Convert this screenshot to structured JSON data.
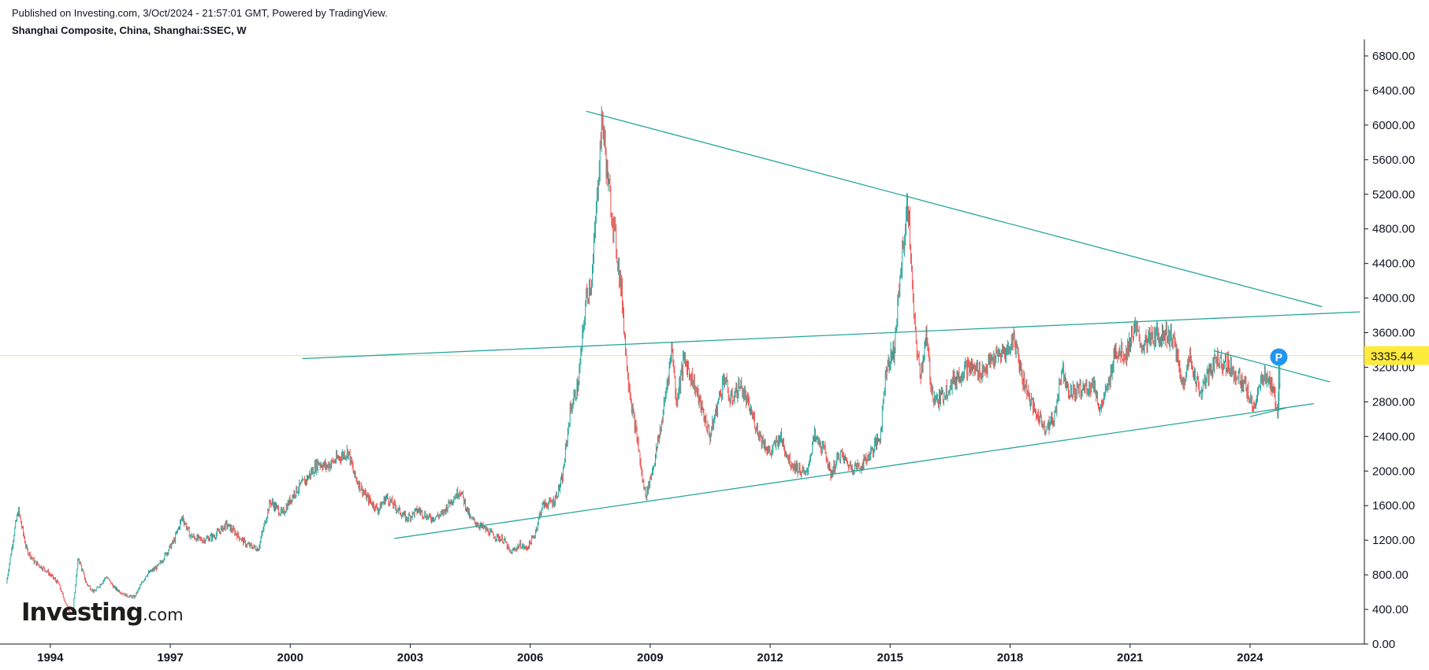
{
  "header": {
    "published": "Published on Investing.com, 3/Oct/2024 - 21:57:01 GMT, Powered by TradingView.",
    "symbol": "Shanghai Composite, China, Shanghai:SSEC, W"
  },
  "logo": {
    "main": "Investing",
    "suffix": ".com"
  },
  "colors": {
    "up": "#26a69a",
    "down": "#ef5350",
    "trendline": "#26a69a",
    "price_line": "#ffeb3b",
    "price_label_bg": "#ffeb3b",
    "marker_bg": "#2196f3",
    "axis": "#131722"
  },
  "marker": {
    "label": "P",
    "date": 2024.72,
    "price": 3336
  },
  "chart_data": {
    "type": "candlestick-line",
    "title": "Shanghai Composite, China, Shanghai:SSEC, W",
    "interval": "W",
    "xlim": [
      1992.9,
      2026.8
    ],
    "ylim": [
      0,
      6900
    ],
    "y_tick_values": [
      0,
      400,
      800,
      1200,
      1600,
      2000,
      2400,
      2800,
      3200,
      3600,
      4000,
      4400,
      4800,
      5200,
      5600,
      6000,
      6400,
      6800
    ],
    "y_tick_labels": [
      "0.00",
      "400.00",
      "800.00",
      "1200.00",
      "1600.00",
      "2000.00",
      "2400.00",
      "2800.00",
      "3200.00",
      "3600.00",
      "4000.00",
      "4400.00",
      "4800.00",
      "5200.00",
      "5600.00",
      "6000.00",
      "6400.00",
      "6800.00"
    ],
    "x_tick_values": [
      1994,
      1997,
      2000,
      2003,
      2006,
      2009,
      2012,
      2015,
      2018,
      2021,
      2024
    ],
    "x_tick_labels": [
      "1994",
      "1997",
      "2000",
      "2003",
      "2006",
      "2009",
      "2012",
      "2015",
      "2018",
      "2021",
      "2024"
    ],
    "last_price": 3335.44,
    "last_price_label": "3335.44",
    "price_path": [
      [
        1992.9,
        700
      ],
      [
        1993.1,
        1300
      ],
      [
        1993.2,
        1550
      ],
      [
        1993.4,
        1100
      ],
      [
        1993.6,
        950
      ],
      [
        1993.9,
        850
      ],
      [
        1994.2,
        700
      ],
      [
        1994.4,
        450
      ],
      [
        1994.55,
        330
      ],
      [
        1994.7,
        1000
      ],
      [
        1994.9,
        700
      ],
      [
        1995.1,
        600
      ],
      [
        1995.4,
        780
      ],
      [
        1995.6,
        650
      ],
      [
        1995.9,
        560
      ],
      [
        1996.1,
        540
      ],
      [
        1996.4,
        800
      ],
      [
        1996.7,
        900
      ],
      [
        1996.9,
        1050
      ],
      [
        1997.1,
        1200
      ],
      [
        1997.3,
        1470
      ],
      [
        1997.5,
        1250
      ],
      [
        1997.8,
        1200
      ],
      [
        1998.1,
        1250
      ],
      [
        1998.4,
        1380
      ],
      [
        1998.6,
        1300
      ],
      [
        1998.9,
        1150
      ],
      [
        1999.2,
        1100
      ],
      [
        1999.5,
        1650
      ],
      [
        1999.8,
        1500
      ],
      [
        2000.1,
        1750
      ],
      [
        2000.4,
        1900
      ],
      [
        2000.7,
        2100
      ],
      [
        2000.9,
        2050
      ],
      [
        2001.2,
        2150
      ],
      [
        2001.45,
        2230
      ],
      [
        2001.6,
        1950
      ],
      [
        2001.9,
        1700
      ],
      [
        2002.2,
        1550
      ],
      [
        2002.4,
        1700
      ],
      [
        2002.6,
        1600
      ],
      [
        2002.9,
        1450
      ],
      [
        2003.2,
        1550
      ],
      [
        2003.5,
        1450
      ],
      [
        2003.8,
        1500
      ],
      [
        2004.0,
        1650
      ],
      [
        2004.25,
        1780
      ],
      [
        2004.5,
        1450
      ],
      [
        2004.8,
        1350
      ],
      [
        2005.1,
        1250
      ],
      [
        2005.35,
        1200
      ],
      [
        2005.5,
        1050
      ],
      [
        2005.75,
        1150
      ],
      [
        2005.9,
        1100
      ],
      [
        2006.1,
        1250
      ],
      [
        2006.3,
        1600
      ],
      [
        2006.6,
        1650
      ],
      [
        2006.8,
        1900
      ],
      [
        2007.0,
        2700
      ],
      [
        2007.2,
        3000
      ],
      [
        2007.4,
        4000
      ],
      [
        2007.55,
        4250
      ],
      [
        2007.7,
        5400
      ],
      [
        2007.8,
        6100
      ],
      [
        2007.95,
        5300
      ],
      [
        2008.1,
        4800
      ],
      [
        2008.3,
        4000
      ],
      [
        2008.4,
        3300
      ],
      [
        2008.55,
        2700
      ],
      [
        2008.7,
        2300
      ],
      [
        2008.8,
        1900
      ],
      [
        2008.9,
        1720
      ],
      [
        2009.1,
        2100
      ],
      [
        2009.3,
        2600
      ],
      [
        2009.55,
        3450
      ],
      [
        2009.65,
        2800
      ],
      [
        2009.85,
        3300
      ],
      [
        2010.1,
        3000
      ],
      [
        2010.3,
        2700
      ],
      [
        2010.5,
        2400
      ],
      [
        2010.75,
        2900
      ],
      [
        2010.85,
        3100
      ],
      [
        2011.0,
        2800
      ],
      [
        2011.25,
        3000
      ],
      [
        2011.5,
        2700
      ],
      [
        2011.75,
        2400
      ],
      [
        2012.0,
        2200
      ],
      [
        2012.25,
        2400
      ],
      [
        2012.5,
        2100
      ],
      [
        2012.9,
        1950
      ],
      [
        2013.1,
        2400
      ],
      [
        2013.4,
        2200
      ],
      [
        2013.5,
        1950
      ],
      [
        2013.75,
        2200
      ],
      [
        2014.0,
        2050
      ],
      [
        2014.25,
        2050
      ],
      [
        2014.5,
        2200
      ],
      [
        2014.75,
        2400
      ],
      [
        2014.9,
        3200
      ],
      [
        2015.1,
        3400
      ],
      [
        2015.3,
        4500
      ],
      [
        2015.45,
        5100
      ],
      [
        2015.6,
        3700
      ],
      [
        2015.75,
        3100
      ],
      [
        2015.9,
        3550
      ],
      [
        2016.05,
        2900
      ],
      [
        2016.2,
        2800
      ],
      [
        2016.5,
        3000
      ],
      [
        2016.9,
        3200
      ],
      [
        2017.3,
        3150
      ],
      [
        2017.6,
        3300
      ],
      [
        2017.95,
        3400
      ],
      [
        2018.1,
        3550
      ],
      [
        2018.3,
        3100
      ],
      [
        2018.6,
        2700
      ],
      [
        2018.9,
        2500
      ],
      [
        2019.1,
        2600
      ],
      [
        2019.3,
        3200
      ],
      [
        2019.5,
        2900
      ],
      [
        2019.8,
        2950
      ],
      [
        2020.1,
        3000
      ],
      [
        2020.25,
        2700
      ],
      [
        2020.5,
        3050
      ],
      [
        2020.6,
        3400
      ],
      [
        2020.9,
        3350
      ],
      [
        2021.1,
        3650
      ],
      [
        2021.3,
        3450
      ],
      [
        2021.6,
        3550
      ],
      [
        2021.9,
        3600
      ],
      [
        2022.1,
        3500
      ],
      [
        2022.3,
        3000
      ],
      [
        2022.5,
        3300
      ],
      [
        2022.75,
        2900
      ],
      [
        2022.95,
        3100
      ],
      [
        2023.15,
        3300
      ],
      [
        2023.4,
        3250
      ],
      [
        2023.6,
        3150
      ],
      [
        2023.9,
        2950
      ],
      [
        2024.05,
        2750
      ],
      [
        2024.15,
        2800
      ],
      [
        2024.35,
        3150
      ],
      [
        2024.55,
        2950
      ],
      [
        2024.7,
        2700
      ],
      [
        2024.75,
        3336
      ]
    ],
    "trendlines": [
      {
        "name": "upper-resistance",
        "points": [
          [
            2007.4,
            6160
          ],
          [
            2025.8,
            3900
          ]
        ]
      },
      {
        "name": "long-rising-line",
        "points": [
          [
            2000.3,
            3300
          ],
          [
            2026.75,
            3840
          ]
        ]
      },
      {
        "name": "lower-support",
        "points": [
          [
            2002.6,
            1220
          ],
          [
            2025.6,
            2780
          ]
        ]
      },
      {
        "name": "short-down-channel",
        "points": [
          [
            2023.1,
            3390
          ],
          [
            2026.0,
            3030
          ]
        ]
      },
      {
        "name": "short-bottom-line",
        "points": [
          [
            2024.0,
            2630
          ],
          [
            2024.9,
            2730
          ]
        ]
      },
      {
        "name": "marker-stem",
        "points": [
          [
            2024.72,
            2700
          ],
          [
            2024.72,
            3336
          ]
        ]
      }
    ]
  }
}
